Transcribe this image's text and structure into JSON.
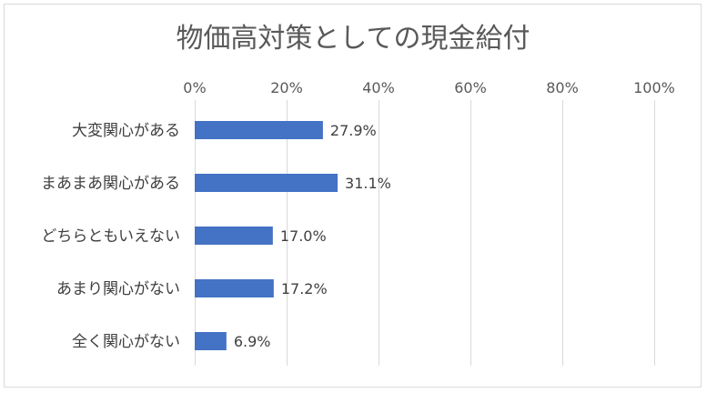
{
  "chart_data": {
    "type": "bar",
    "orientation": "horizontal",
    "title": "物価高対策としての現金給付",
    "categories": [
      "大変関心がある",
      "まあまあ関心がある",
      "どちらともいえない",
      "あまり関心がない",
      "全く関心がない"
    ],
    "values": [
      27.9,
      31.1,
      17.0,
      17.2,
      6.9
    ],
    "data_labels": [
      "27.9%",
      "31.1%",
      "17.0%",
      "17.2%",
      "6.9%"
    ],
    "xlim": [
      0,
      100
    ],
    "x_ticks": [
      "0%",
      "20%",
      "40%",
      "60%",
      "80%",
      "100%"
    ],
    "x_tick_values": [
      0,
      20,
      40,
      60,
      80,
      100
    ],
    "x_axis_position": "top",
    "grid": true,
    "legend": "none",
    "bar_color": "#4472C4"
  }
}
